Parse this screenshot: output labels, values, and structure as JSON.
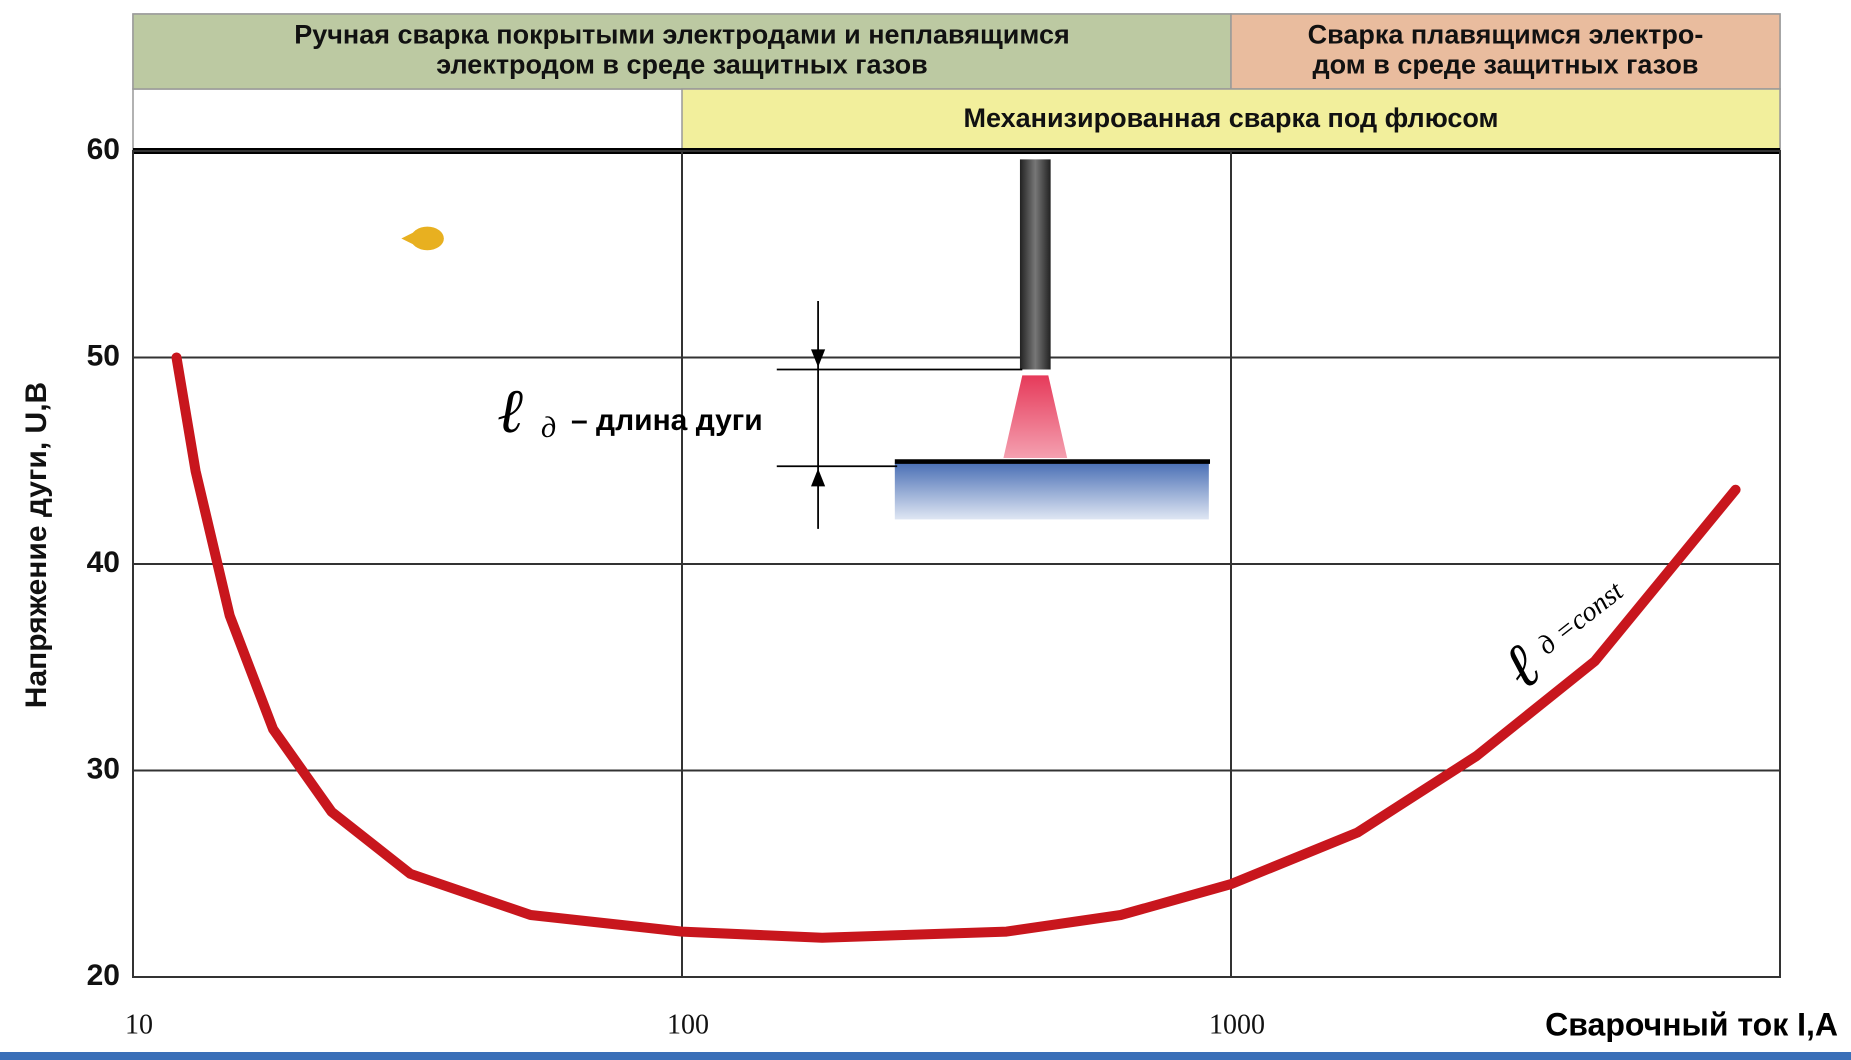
{
  "chart_data": {
    "type": "line",
    "title_bands": [
      {
        "lines": [
          "Ручная сварка покрытыми электродами и неплавящимся",
          "электродом в среде защитных газов"
        ],
        "from": 10,
        "to": 1000,
        "color": "#bcc9a2",
        "row": 0
      },
      {
        "lines": [
          "Сварка плавящимся электро-",
          "дом в среде защитных газов"
        ],
        "from": 1000,
        "to": 10000,
        "color": "#e9bc9e",
        "row": 0
      },
      {
        "lines": [
          "Механизированная сварка под флюсом"
        ],
        "from": 100,
        "to": 10000,
        "color": "#f2ef9c",
        "row": 1
      }
    ],
    "x_label": "Сварочный ток I,A",
    "y_label": "Напряжение дуги, U,B",
    "x_scale": "log",
    "xlim": [
      10,
      10000
    ],
    "xticks": [
      10,
      100,
      1000
    ],
    "ylim": [
      20,
      60
    ],
    "yticks": [
      20,
      30,
      40,
      50,
      60
    ],
    "grid": true,
    "series": [
      {
        "color": "#c8161d",
        "x": [
          12,
          13,
          15,
          18,
          23,
          32,
          53,
          100,
          180,
          390,
          630,
          1000,
          1700,
          2800,
          4600,
          8300
        ],
        "values": [
          50,
          44.5,
          37.5,
          32,
          28,
          25,
          23,
          22.2,
          21.9,
          22.2,
          23,
          24.5,
          27,
          30.7,
          35.3,
          43.6
        ]
      }
    ],
    "arc_length_label": {
      "symbol": "ℓ",
      "subscript": "д",
      "text": "– длина дуги"
    },
    "curve_label": {
      "symbol": "ℓ",
      "subscript": "д =const"
    }
  }
}
